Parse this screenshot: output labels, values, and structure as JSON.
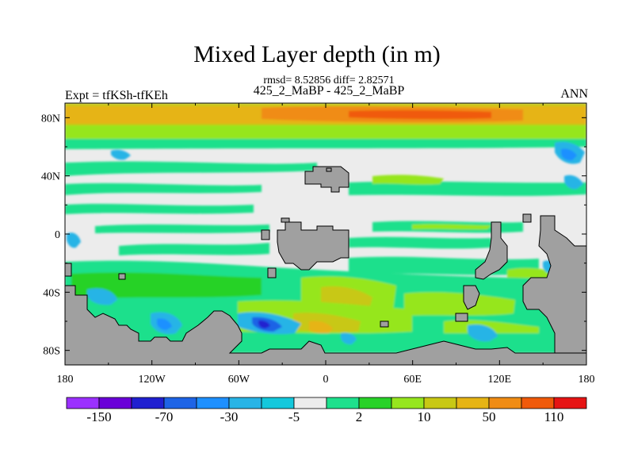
{
  "title": "Mixed Layer depth (in m)",
  "subtitle_stats": "rmsd= 8.52856 diff= 2.82571",
  "subtitle_runs": "425_2_MaBP - 425_2_MaBP",
  "experiment": "Expt = tfKSh-tfKEh",
  "season": "ANN",
  "map": {
    "lon_range": [
      -180,
      180
    ],
    "lat_range": [
      -90,
      90
    ],
    "y_axis_labels": [
      "80N",
      "40N",
      "0",
      "40S",
      "80S"
    ],
    "y_axis_values": [
      80,
      40,
      0,
      -40,
      -80
    ],
    "x_axis_labels": [
      "180",
      "120W",
      "60W",
      "0",
      "60E",
      "120E",
      "180"
    ],
    "x_axis_values": [
      -180,
      -120,
      -60,
      0,
      60,
      120,
      180
    ],
    "land_color": "#a0a0a0",
    "zero_color": "#e8e8e8"
  },
  "colorbar": {
    "colors": [
      "#9b30ff",
      "#6a00d8",
      "#2020d0",
      "#1e64e6",
      "#1e90ff",
      "#28b4e6",
      "#14c8dc",
      "#ececec",
      "#1ee08c",
      "#28d228",
      "#96e61e",
      "#c8c814",
      "#e6b414",
      "#f08c14",
      "#f05a0a",
      "#e61414"
    ],
    "labels": [
      "-150",
      "-70",
      "-30",
      "-5",
      "2",
      "10",
      "50",
      "110"
    ]
  }
}
